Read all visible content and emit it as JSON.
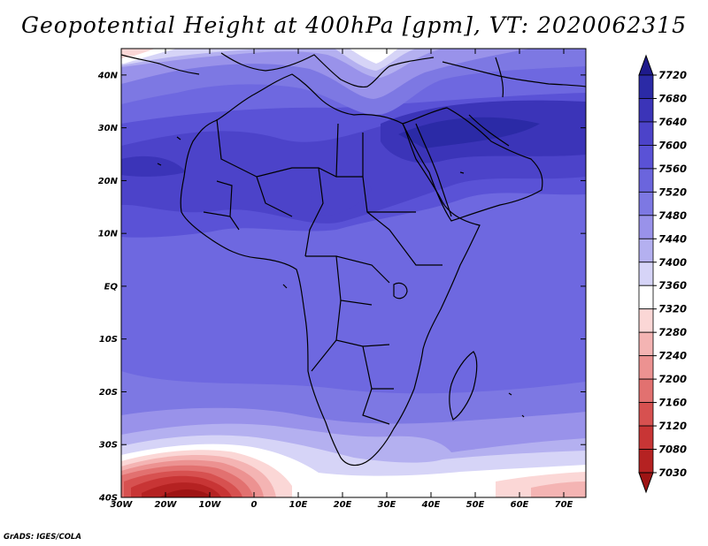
{
  "title": "Geopotential Height at 400hPa [gpm], VT: 2020062315",
  "credit": "GrADS: IGES/COLA",
  "lat_labels": [
    "40N",
    "30N",
    "20N",
    "10N",
    "EQ",
    "10S",
    "20S",
    "30S",
    "40S"
  ],
  "lon_labels": [
    "30W",
    "20W",
    "10W",
    "0",
    "10E",
    "20E",
    "30E",
    "40E",
    "50E",
    "60E",
    "70E"
  ],
  "colorbar": {
    "labels": [
      "7720",
      "7680",
      "7640",
      "7600",
      "7560",
      "7520",
      "7480",
      "7440",
      "7400",
      "7360",
      "7320",
      "7280",
      "7240",
      "7200",
      "7160",
      "7120",
      "7080",
      "7030"
    ],
    "colors": [
      "#1e1a8c",
      "#2b2aa6",
      "#3b34b8",
      "#4c43c9",
      "#5a52d6",
      "#6b65dd",
      "#7d78e3",
      "#9992ea",
      "#b4b0f0",
      "#d6d4f7",
      "#ffffff",
      "#fbd7d6",
      "#f4b4b3",
      "#ec9291",
      "#e27170",
      "#d75150",
      "#c83535",
      "#b52222",
      "#9e1414"
    ]
  },
  "map": {
    "lat_range": [
      -40,
      45
    ],
    "lon_range": [
      -30,
      75
    ],
    "variable": "Geopotential Height",
    "level": "400hPa",
    "units": "gpm",
    "valid_time": "2020062315"
  }
}
